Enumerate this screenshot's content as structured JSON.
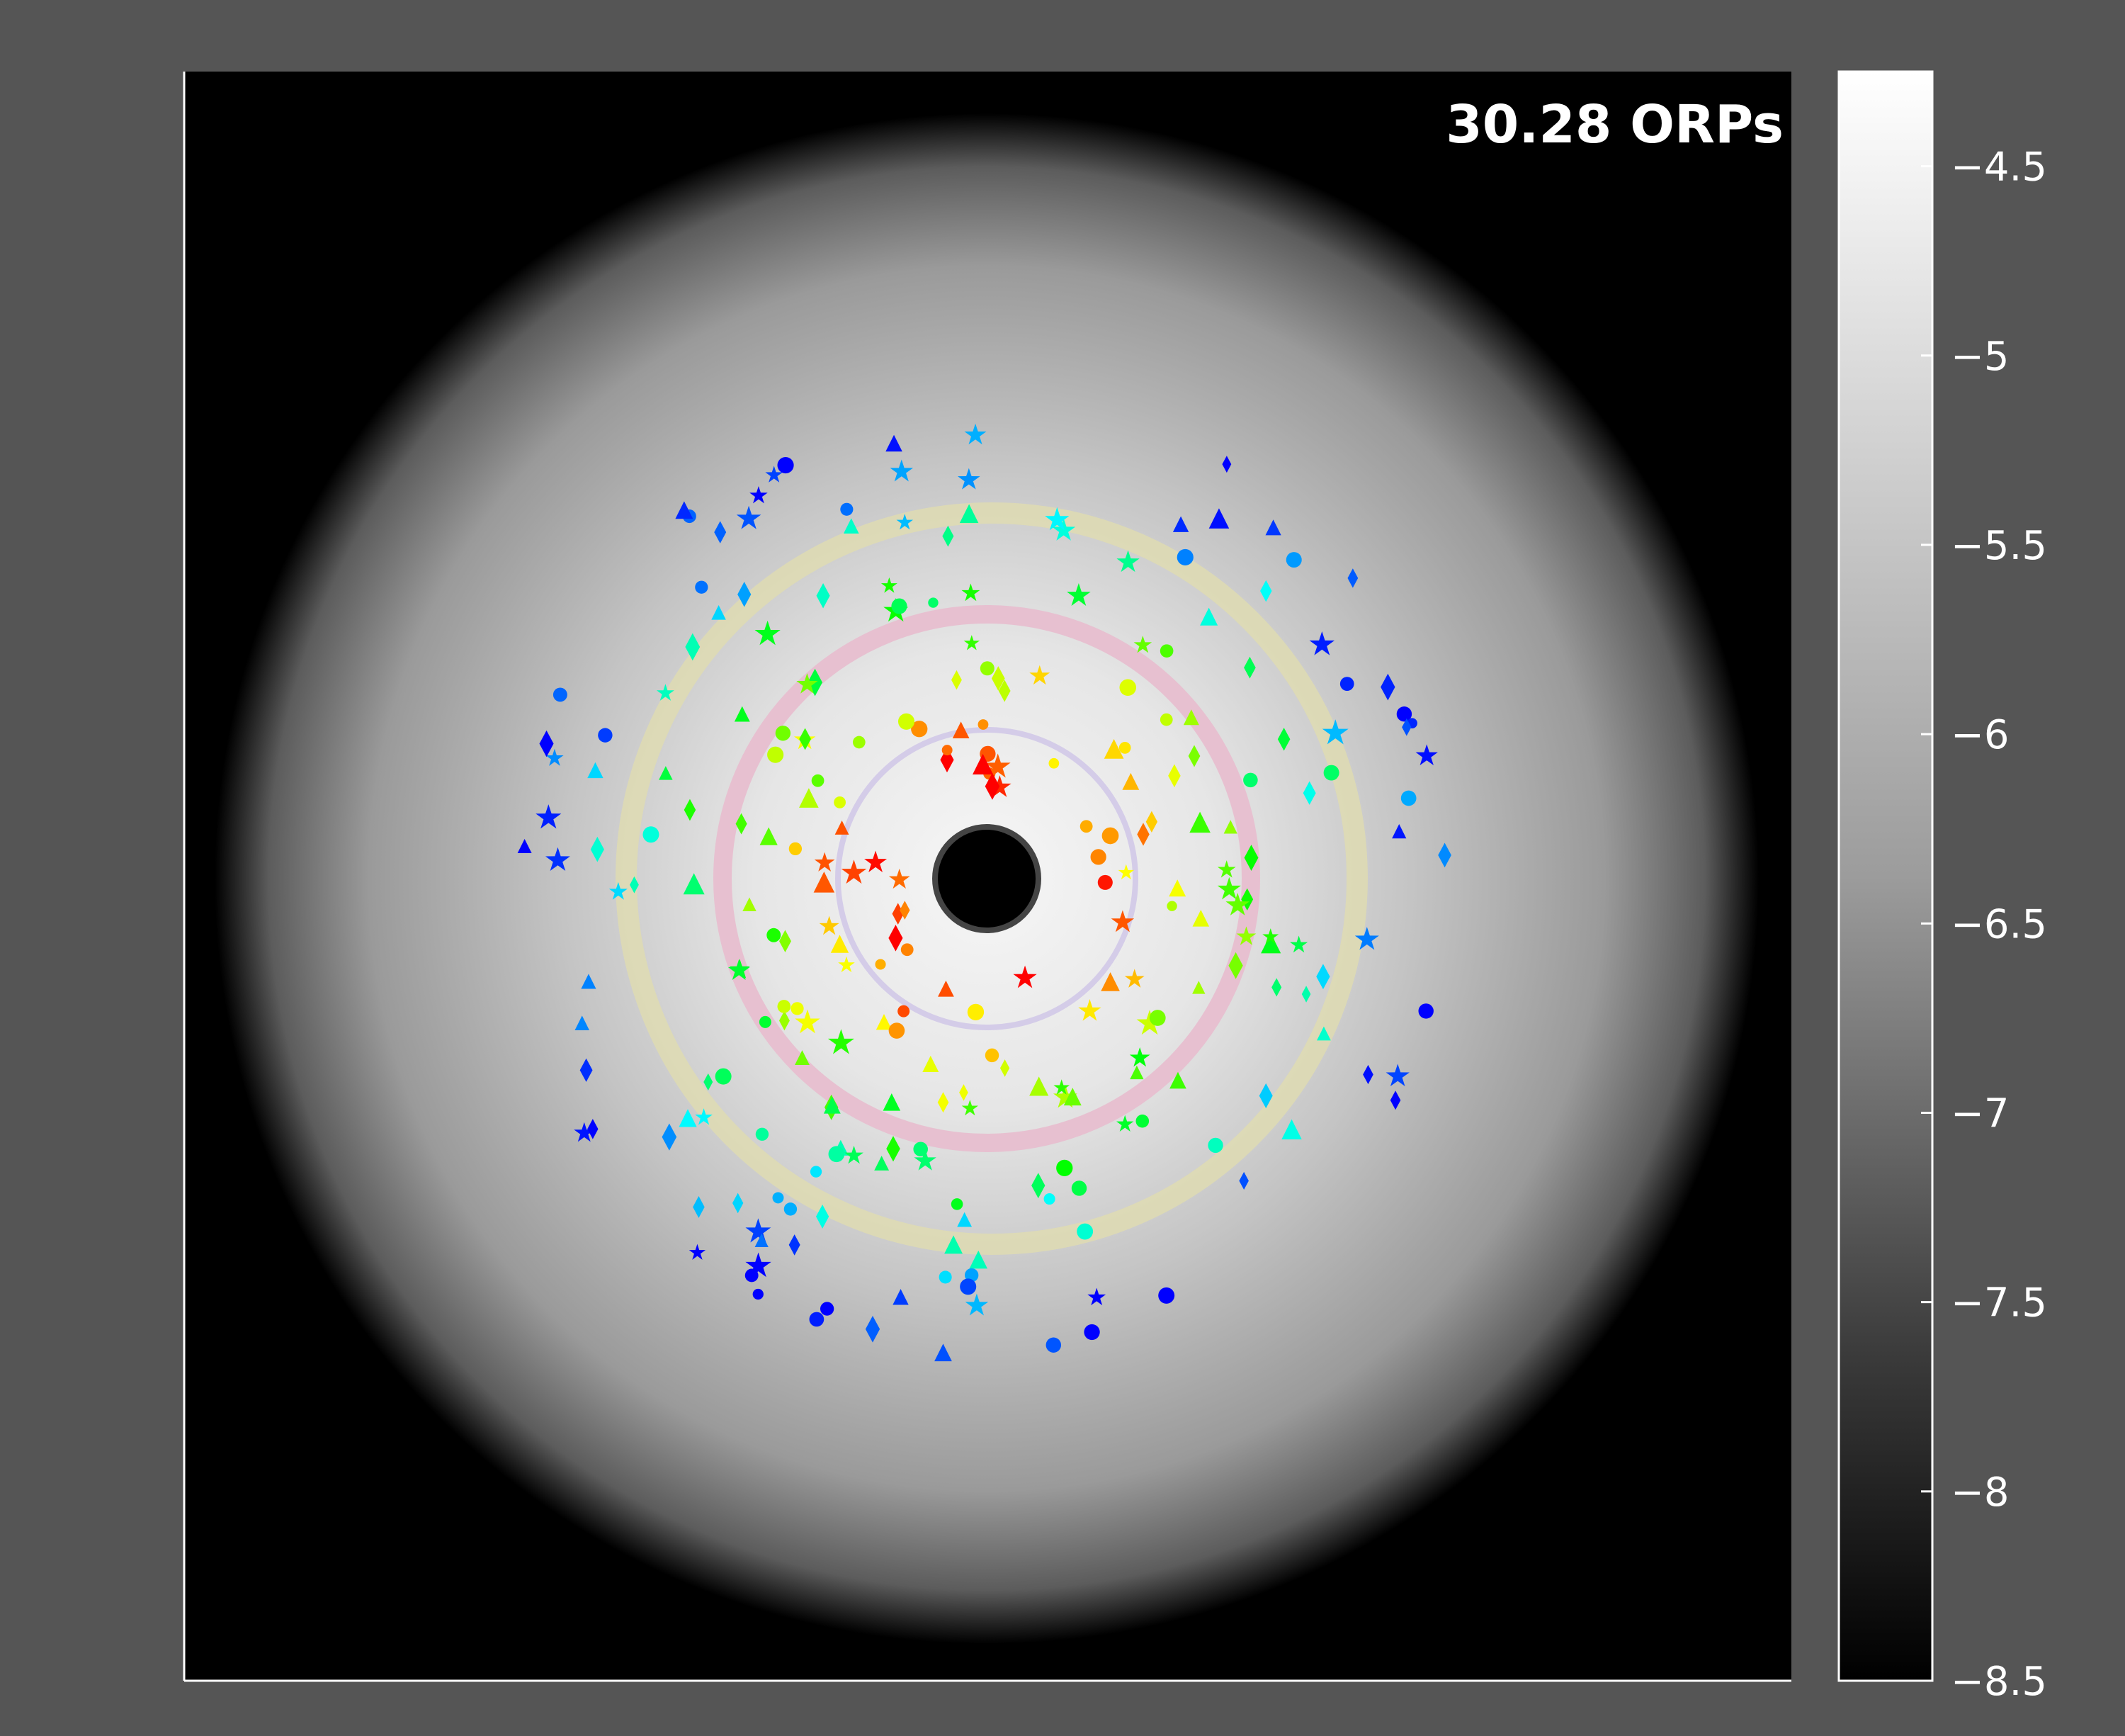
{
  "chart_data": {
    "type": "density-map",
    "annotation": "30.28 ORPs",
    "clim": [
      -8.5,
      -4.25
    ],
    "cticks": [
      {
        "value": -4.5,
        "label": "−4.5"
      },
      {
        "value": -5,
        "label": "−5"
      },
      {
        "value": -5.5,
        "label": "−5.5"
      },
      {
        "value": -6,
        "label": "−6"
      },
      {
        "value": -6.5,
        "label": "−6.5"
      },
      {
        "value": -7,
        "label": "−7"
      },
      {
        "value": -7.5,
        "label": "−7.5"
      },
      {
        "value": -8,
        "label": "−8"
      },
      {
        "value": -8.5,
        "label": "−8.5"
      }
    ]
  }
}
